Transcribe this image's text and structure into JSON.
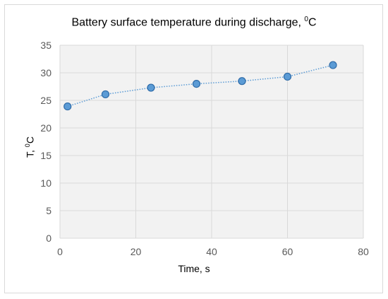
{
  "chart_data": {
    "type": "scatter",
    "title_main": "Battery surface temperature during discharge, ",
    "title_sup": "0",
    "title_unit": "C",
    "xlabel": "Time, s",
    "ylabel_main": "T, ",
    "ylabel_sup": "0",
    "ylabel_unit": "C",
    "xlim": [
      0,
      80
    ],
    "ylim": [
      0,
      35
    ],
    "xticks": [
      0,
      20,
      40,
      60,
      80
    ],
    "yticks": [
      0,
      5,
      10,
      15,
      20,
      25,
      30,
      35
    ],
    "grid": true,
    "legend": "none",
    "series": [
      {
        "x": [
          2,
          12,
          24,
          36,
          48,
          60,
          72
        ],
        "y": [
          23.9,
          26.1,
          27.3,
          28.0,
          28.5,
          29.3,
          31.4
        ],
        "marker_color": "#5b9bd5",
        "marker_edge": "#2e6ba8",
        "line_style": "dotted"
      }
    ]
  }
}
